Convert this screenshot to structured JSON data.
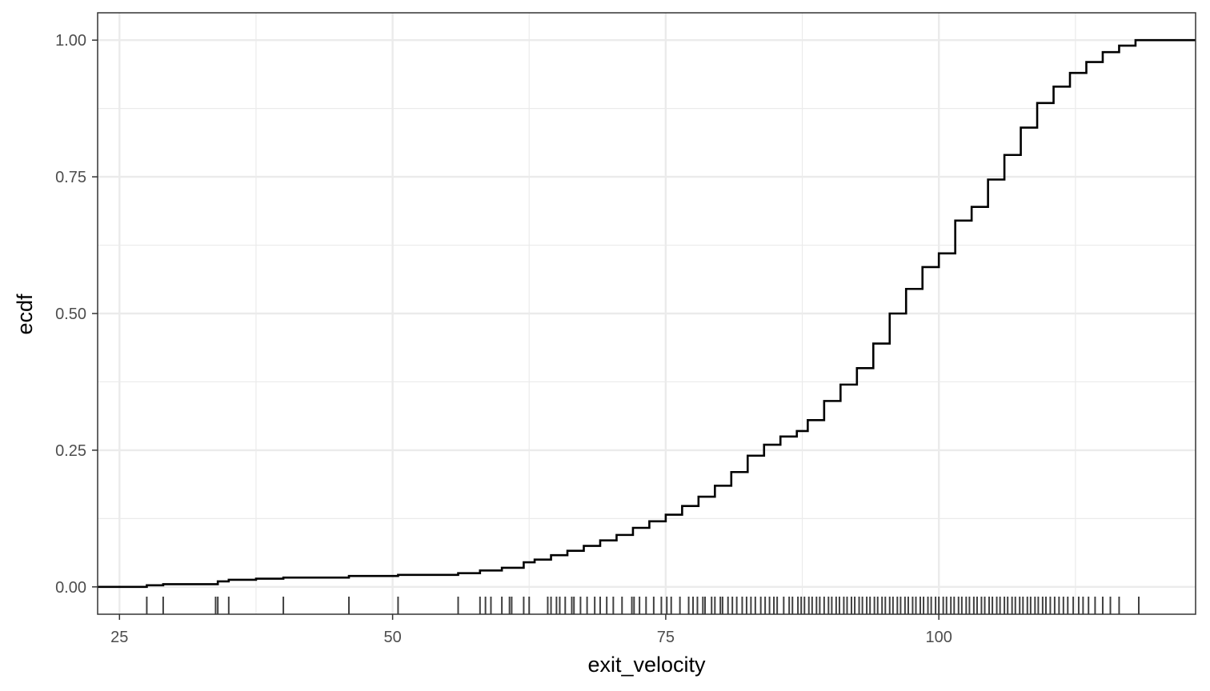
{
  "chart_data": {
    "type": "line",
    "title": "",
    "xlabel": "exit_velocity",
    "ylabel": "ecdf",
    "xlim": [
      23,
      123.5
    ],
    "ylim": [
      -0.05,
      1.05
    ],
    "x_ticks": [
      25,
      50,
      75,
      100
    ],
    "x_tick_labels": [
      "25",
      "50",
      "75",
      "100"
    ],
    "y_ticks": [
      0,
      0.25,
      0.5,
      0.75,
      1
    ],
    "y_tick_labels": [
      "0.00",
      "0.25",
      "0.50",
      "0.75",
      "1.00"
    ],
    "x_minor_ticks": [
      37.5,
      62.5,
      87.5,
      112.5
    ],
    "y_minor_ticks": [
      0.125,
      0.375,
      0.625,
      0.875
    ],
    "grid": true,
    "legend": "none",
    "colors": {
      "line": "#000000",
      "rug": "#000000",
      "grid": "#ebebeb",
      "panel_border": "#333333",
      "background": "#ffffff"
    },
    "series": [
      {
        "x": [
          23,
          27.5,
          29,
          34,
          35,
          37.5,
          40,
          46,
          50.5,
          56,
          58,
          60,
          62,
          63,
          64.5,
          66,
          67.5,
          69,
          70.5,
          72,
          73.5,
          75,
          76.5,
          78,
          79.5,
          81,
          82.5,
          84,
          85.5,
          87,
          88,
          89.5,
          91,
          92.5,
          94,
          95.5,
          97,
          98.5,
          100,
          101.5,
          103,
          104.5,
          106,
          107.5,
          109,
          110.5,
          112,
          113.5,
          115,
          116.5,
          118,
          120,
          123.5
        ],
        "y": [
          0,
          0.003,
          0.005,
          0.01,
          0.013,
          0.015,
          0.017,
          0.02,
          0.022,
          0.025,
          0.03,
          0.035,
          0.045,
          0.05,
          0.058,
          0.066,
          0.075,
          0.085,
          0.095,
          0.108,
          0.12,
          0.132,
          0.148,
          0.165,
          0.185,
          0.21,
          0.24,
          0.26,
          0.275,
          0.285,
          0.305,
          0.34,
          0.37,
          0.4,
          0.445,
          0.5,
          0.545,
          0.585,
          0.61,
          0.67,
          0.695,
          0.745,
          0.79,
          0.84,
          0.885,
          0.915,
          0.94,
          0.96,
          0.978,
          0.99,
          1.0,
          1.0,
          1.0
        ]
      }
    ],
    "rug_x": [
      27.5,
      29,
      33.8,
      34,
      35,
      40,
      46,
      50.5,
      56,
      58,
      58.5,
      59,
      60,
      60.7,
      60.9,
      62,
      62.5,
      64.2,
      64.5,
      65,
      65.3,
      65.8,
      66.4,
      66.6,
      67.2,
      67.8,
      68.5,
      69,
      69.6,
      70.2,
      71,
      71.9,
      72.1,
      72.6,
      73.2,
      73.9,
      74.6,
      75.1,
      75.5,
      76.3,
      77.1,
      77.5,
      77.9,
      78.4,
      78.6,
      79.2,
      79.5,
      80,
      80.2,
      80.7,
      81.1,
      81.5,
      82,
      82.4,
      82.8,
      83.2,
      83.7,
      84.1,
      84.5,
      84.9,
      85.2,
      85.8,
      86.3,
      86.6,
      87.1,
      87.4,
      87.7,
      88.1,
      88.4,
      88.8,
      89.1,
      89.5,
      89.9,
      90.2,
      90.6,
      90.9,
      91.3,
      91.6,
      92,
      92.3,
      92.7,
      93,
      93.4,
      93.7,
      94.1,
      94.4,
      94.8,
      95.1,
      95.5,
      95.8,
      96.2,
      96.5,
      96.9,
      97.2,
      97.6,
      97.9,
      98.3,
      98.6,
      99,
      99.3,
      99.7,
      100,
      100.4,
      100.7,
      101.1,
      101.4,
      101.8,
      102.1,
      102.5,
      102.8,
      103.2,
      103.5,
      103.9,
      104.2,
      104.6,
      104.9,
      105.3,
      105.6,
      106,
      106.3,
      106.7,
      107,
      107.4,
      107.7,
      108.1,
      108.4,
      108.8,
      109.1,
      109.5,
      109.8,
      110.2,
      110.6,
      111,
      111.4,
      111.8,
      112.3,
      112.8,
      113.2,
      113.7,
      114.3,
      115,
      115.7,
      116.5,
      118.3
    ]
  }
}
